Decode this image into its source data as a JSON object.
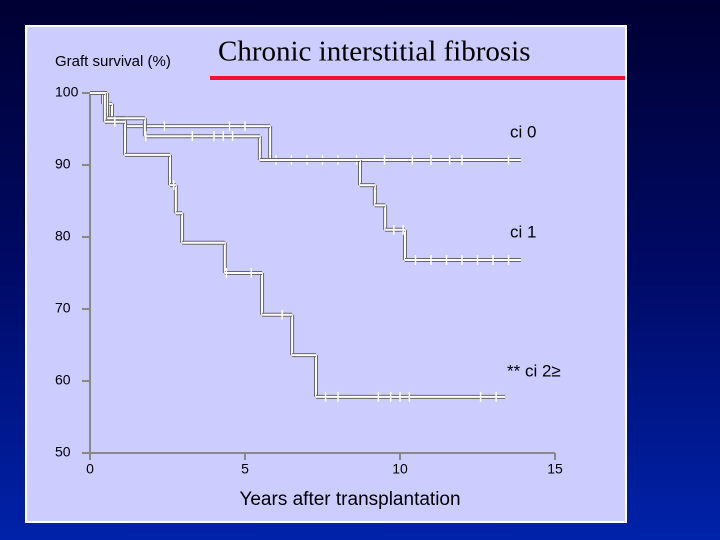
{
  "chart_data": {
    "type": "step",
    "title": "Chronic interstitial fibrosis",
    "ylabel": "Graft survival (%)",
    "xlabel": "Years after transplantation",
    "xlim": [
      0,
      15
    ],
    "xticks": [
      0,
      5,
      10,
      15
    ],
    "ylim": [
      50,
      100
    ],
    "yticks": [
      50,
      60,
      70,
      80,
      90,
      100
    ],
    "series": [
      {
        "name": "ci 0",
        "color": "#ffffff",
        "x": [
          0,
          0.42,
          0.71,
          1.13,
          5.81,
          13.9
        ],
        "values": [
          100,
          98.5,
          96.5,
          95.4,
          90.7,
          90.7
        ],
        "censored": [
          0.6,
          2.4,
          4.5,
          5.0,
          6.0,
          6.5,
          7.0,
          7.5,
          8.0,
          8.6,
          9.5,
          10.4,
          11.0,
          11.6,
          12.0,
          13.5
        ]
      },
      {
        "name": "ci 1",
        "color": "#ffffff",
        "x": [
          0,
          0.55,
          1.77,
          5.48,
          8.71,
          9.19,
          9.52,
          10.16,
          13.9
        ],
        "values": [
          100,
          96.5,
          94,
          90.7,
          87.2,
          84.4,
          81,
          76.8,
          76.8
        ],
        "censored": [
          1.8,
          3.3,
          4.0,
          4.3,
          4.6,
          9.8,
          10.1,
          10.5,
          11.0,
          11.5,
          12.0,
          12.5,
          13.0,
          13.5
        ]
      },
      {
        "name": "** ci 2≥",
        "color": "#ffffff",
        "x": [
          0,
          0.48,
          1.13,
          2.58,
          2.77,
          2.97,
          4.35,
          5.55,
          6.52,
          7.29,
          13.39
        ],
        "values": [
          100,
          96,
          91.4,
          87.2,
          83.3,
          79.2,
          75,
          69.2,
          63.6,
          57.8,
          57.8
        ],
        "censored": [
          0.8,
          2.7,
          4.4,
          5.2,
          6.2,
          7.6,
          8.0,
          9.3,
          9.7,
          10.0,
          10.3,
          12.6,
          13.1
        ]
      }
    ]
  }
}
